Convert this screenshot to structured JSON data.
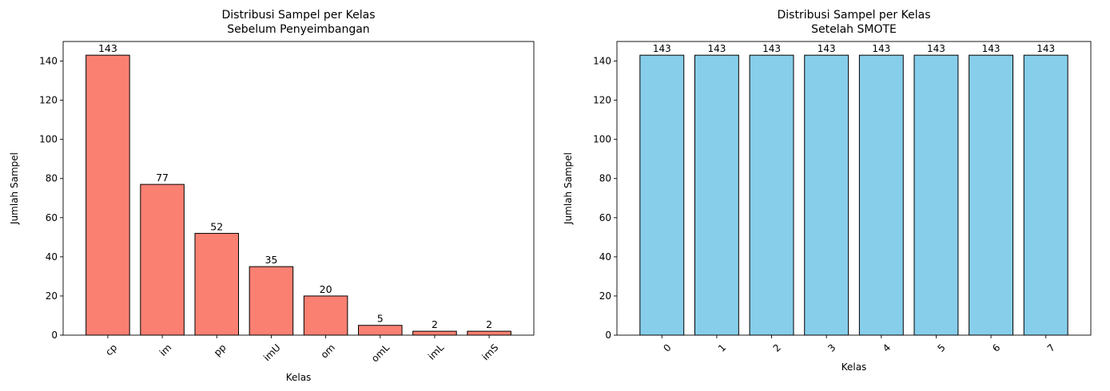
{
  "chart_data": [
    {
      "type": "bar",
      "title": "Distribusi Sampel per Kelas\nSebelum Penyeimbangan",
      "xlabel": "Kelas",
      "ylabel": "Jumlah Sampel",
      "categories": [
        "cp",
        "im",
        "pp",
        "imU",
        "om",
        "omL",
        "imL",
        "imS"
      ],
      "values": [
        143,
        77,
        52,
        35,
        20,
        5,
        2,
        2
      ],
      "data_labels": [
        "143",
        "77",
        "52",
        "35",
        "20",
        "5",
        "2",
        "2"
      ],
      "ylim": [
        0,
        150
      ],
      "yticks": [
        0,
        20,
        40,
        60,
        80,
        100,
        120,
        140
      ],
      "xtick_rotation": 45,
      "bar_color": "#fa8072",
      "edge_color": "#000000",
      "grid": false
    },
    {
      "type": "bar",
      "title": "Distribusi Sampel per Kelas\nSetelah SMOTE",
      "xlabel": "Kelas",
      "ylabel": "Jumlah Sampel",
      "categories": [
        "0",
        "1",
        "2",
        "3",
        "4",
        "5",
        "6",
        "7"
      ],
      "values": [
        143,
        143,
        143,
        143,
        143,
        143,
        143,
        143
      ],
      "data_labels": [
        "143",
        "143",
        "143",
        "143",
        "143",
        "143",
        "143",
        "143"
      ],
      "ylim": [
        0,
        150
      ],
      "yticks": [
        0,
        20,
        40,
        60,
        80,
        100,
        120,
        140
      ],
      "xtick_rotation": 45,
      "bar_color": "#87ceeb",
      "edge_color": "#000000",
      "grid": false
    }
  ]
}
